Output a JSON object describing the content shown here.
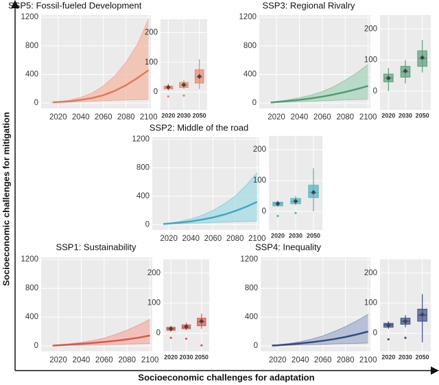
{
  "figure": {
    "ylabel": "Socioeconomic challenges for mitigation",
    "xlabel": "Socioeconomic challenges for adaptation"
  },
  "chart_data": [
    {
      "type": "line",
      "title": "SSP5: Fossil-fueled Development",
      "color": "#e07a5f",
      "band_color": "#f4b9a6",
      "x": [
        2015,
        2020,
        2030,
        2040,
        2050,
        2060,
        2070,
        2080,
        2090,
        2100
      ],
      "values": [
        10,
        14,
        25,
        45,
        70,
        110,
        170,
        250,
        350,
        460
      ],
      "upper": [
        15,
        20,
        40,
        80,
        140,
        240,
        380,
        570,
        820,
        1180
      ],
      "lower": [
        5,
        8,
        12,
        18,
        25,
        32,
        38,
        42,
        46,
        50
      ],
      "xlim": [
        2005,
        2102
      ],
      "ylim": [
        -75,
        1230
      ],
      "xticks": [
        2020,
        2040,
        2060,
        2080,
        2100
      ],
      "yticks": [
        0,
        400,
        800,
        1200
      ],
      "grid": true
    },
    {
      "type": "box",
      "color": "#e9866c",
      "categories": [
        "2020",
        "2030",
        "2050"
      ],
      "low": [
        5,
        10,
        10
      ],
      "q1": [
        10,
        15,
        30
      ],
      "median": [
        15,
        22,
        50
      ],
      "q3": [
        20,
        32,
        75
      ],
      "high": [
        28,
        40,
        110
      ],
      "mean": [
        16,
        24,
        52
      ],
      "outliers": [
        [
          -15
        ],
        [
          -12
        ],
        []
      ],
      "ylim": [
        -60,
        245
      ],
      "yticks": [
        0,
        100,
        200
      ],
      "grid": true
    },
    {
      "type": "line",
      "title": "SSP3: Regional Rivalry",
      "color": "#4f9a73",
      "band_color": "#a9d4bc",
      "x": [
        2015,
        2020,
        2030,
        2040,
        2050,
        2060,
        2070,
        2080,
        2090,
        2100
      ],
      "values": [
        8,
        15,
        30,
        45,
        65,
        90,
        120,
        155,
        195,
        240
      ],
      "upper": [
        12,
        20,
        45,
        75,
        110,
        160,
        230,
        320,
        420,
        540
      ],
      "lower": [
        5,
        8,
        12,
        18,
        25,
        30,
        38,
        45,
        50,
        55
      ],
      "xlim": [
        2005,
        2102
      ],
      "ylim": [
        -75,
        1230
      ],
      "xticks": [
        2020,
        2040,
        2060,
        2080,
        2100
      ],
      "yticks": [
        0,
        400,
        800,
        1200
      ],
      "grid": true
    },
    {
      "type": "box",
      "color": "#5a9f7c",
      "categories": [
        "2020",
        "2030",
        "2050"
      ],
      "low": [
        0,
        25,
        60
      ],
      "q1": [
        30,
        45,
        80
      ],
      "median": [
        42,
        62,
        105
      ],
      "q3": [
        55,
        80,
        130
      ],
      "high": [
        75,
        100,
        165
      ],
      "mean": [
        42,
        65,
        108
      ],
      "outliers": [
        [],
        [],
        []
      ],
      "ylim": [
        -60,
        245
      ],
      "yticks": [
        0,
        100,
        200
      ],
      "grid": true
    },
    {
      "type": "line",
      "title": "SSP2: Middle of the road",
      "color": "#3fa9bd",
      "band_color": "#a6dbe4",
      "x": [
        2015,
        2020,
        2030,
        2040,
        2050,
        2060,
        2070,
        2080,
        2090,
        2100
      ],
      "values": [
        8,
        14,
        28,
        45,
        70,
        100,
        140,
        190,
        250,
        320
      ],
      "upper": [
        12,
        20,
        45,
        80,
        130,
        200,
        290,
        400,
        550,
        730
      ],
      "lower": [
        5,
        8,
        12,
        18,
        22,
        28,
        35,
        40,
        45,
        50
      ],
      "xlim": [
        2005,
        2102
      ],
      "ylim": [
        -75,
        1230
      ],
      "xticks": [
        2020,
        2040,
        2060,
        2080,
        2100
      ],
      "yticks": [
        0,
        400,
        800,
        1200
      ],
      "grid": true
    },
    {
      "type": "box",
      "color": "#4fb3c4",
      "categories": [
        "2020",
        "2030",
        "2050"
      ],
      "low": [
        15,
        20,
        0
      ],
      "q1": [
        18,
        25,
        45
      ],
      "median": [
        25,
        33,
        60
      ],
      "q3": [
        30,
        42,
        85
      ],
      "high": [
        35,
        50,
        140
      ],
      "mean": [
        25,
        33,
        62
      ],
      "outliers": [
        [
          -15
        ],
        [
          -5
        ],
        []
      ],
      "ylim": [
        -60,
        245
      ],
      "yticks": [
        0,
        100,
        200
      ],
      "grid": true
    },
    {
      "type": "line",
      "title": "SSP1: Sustainability",
      "color": "#d9574a",
      "band_color": "#f2b1a8",
      "x": [
        2015,
        2020,
        2030,
        2040,
        2050,
        2060,
        2070,
        2080,
        2090,
        2100
      ],
      "values": [
        5,
        10,
        20,
        30,
        42,
        56,
        72,
        92,
        115,
        145
      ],
      "upper": [
        10,
        15,
        30,
        50,
        75,
        110,
        160,
        220,
        290,
        370
      ],
      "lower": [
        3,
        5,
        8,
        12,
        15,
        18,
        22,
        26,
        30,
        35
      ],
      "xlim": [
        2005,
        2102
      ],
      "ylim": [
        -75,
        1230
      ],
      "xticks": [
        2020,
        2040,
        2060,
        2080,
        2100
      ],
      "yticks": [
        0,
        400,
        800,
        1200
      ],
      "grid": true
    },
    {
      "type": "box",
      "color": "#d9574a",
      "categories": [
        "2020",
        "2030",
        "2050"
      ],
      "low": [
        5,
        10,
        15
      ],
      "q1": [
        10,
        15,
        25
      ],
      "median": [
        15,
        20,
        38
      ],
      "q3": [
        20,
        28,
        50
      ],
      "high": [
        25,
        35,
        65
      ],
      "mean": [
        15,
        22,
        40
      ],
      "outliers": [
        [
          -15
        ],
        [
          -18
        ],
        [
          -40
        ]
      ],
      "ylim": [
        -60,
        245
      ],
      "yticks": [
        0,
        100,
        200
      ],
      "grid": true
    },
    {
      "type": "line",
      "title": "SSP4: Inequality",
      "color": "#34497f",
      "band_color": "#a7b2d0",
      "x": [
        2015,
        2020,
        2030,
        2040,
        2050,
        2060,
        2070,
        2080,
        2090,
        2100
      ],
      "values": [
        6,
        10,
        22,
        36,
        52,
        72,
        96,
        125,
        160,
        200
      ],
      "upper": [
        10,
        16,
        35,
        60,
        95,
        140,
        200,
        270,
        350,
        440
      ],
      "lower": [
        4,
        6,
        10,
        14,
        18,
        22,
        28,
        32,
        36,
        40
      ],
      "xlim": [
        2005,
        2102
      ],
      "ylim": [
        -75,
        1230
      ],
      "xticks": [
        2020,
        2040,
        2060,
        2080,
        2100
      ],
      "yticks": [
        0,
        400,
        800,
        1200
      ],
      "grid": true
    },
    {
      "type": "box",
      "color": "#3b4f8c",
      "categories": [
        "2020",
        "2030",
        "2050"
      ],
      "low": [
        15,
        20,
        -30
      ],
      "q1": [
        20,
        30,
        40
      ],
      "median": [
        28,
        40,
        60
      ],
      "q3": [
        33,
        50,
        80
      ],
      "high": [
        40,
        60,
        130
      ],
      "mean": [
        27,
        40,
        62
      ],
      "outliers": [
        [
          -20
        ],
        [
          -15
        ],
        []
      ],
      "ylim": [
        -60,
        245
      ],
      "yticks": [
        0,
        100,
        200
      ],
      "grid": true
    }
  ]
}
